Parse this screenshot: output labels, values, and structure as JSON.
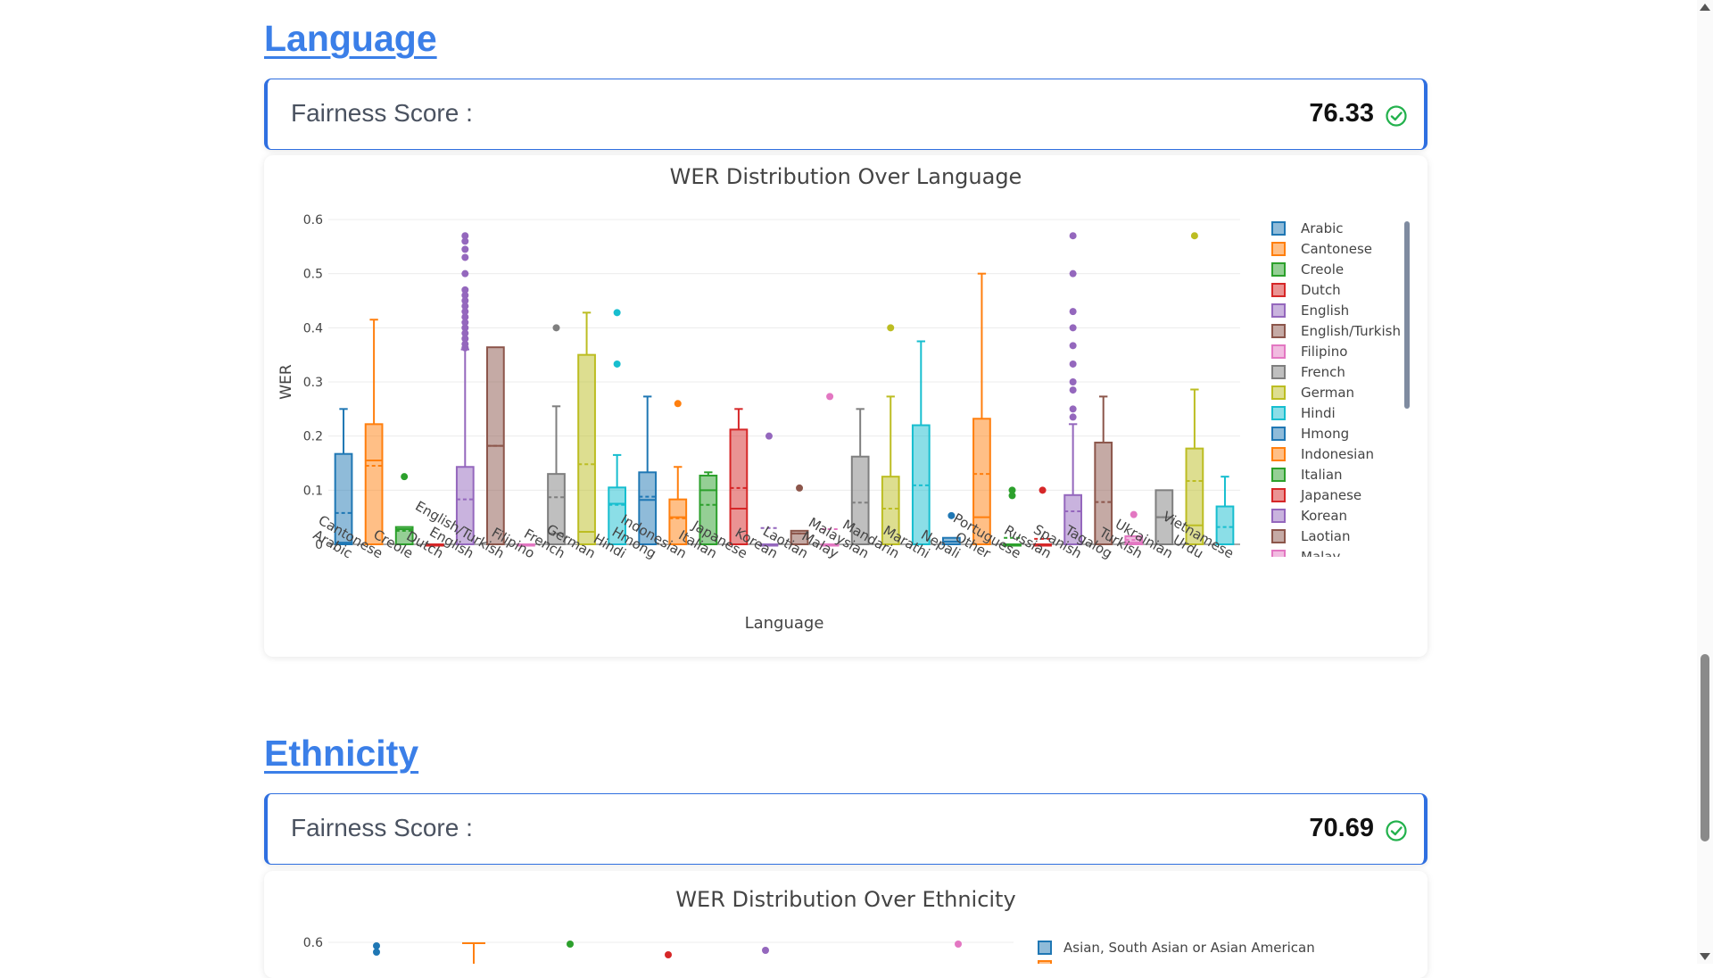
{
  "sections": [
    {
      "title": "Language",
      "score_label": "Fairness Score :",
      "score_value": "76.33",
      "chart_title": "WER Distribution Over Language"
    },
    {
      "title": "Ethnicity",
      "score_label": "Fairness Score :",
      "score_value": "70.69",
      "chart_title": "WER Distribution Over Ethnicity"
    }
  ],
  "colors": {
    "link": "#3b7fe8",
    "check": "#22b14c",
    "border": "#2f6fe0"
  },
  "chart_data": [
    {
      "type": "box",
      "title": "WER Distribution Over Language",
      "xlabel": "Language",
      "ylabel": "WER",
      "ylim": [
        0,
        0.6
      ],
      "yticks": [
        0,
        0.1,
        0.2,
        0.3,
        0.4,
        0.5,
        0.6
      ],
      "ytick_labels": [
        "0",
        "0.1",
        "0.2",
        "0.3",
        "0.4",
        "0.5",
        "0.6"
      ],
      "grid": true,
      "legend_position": "right",
      "categories": [
        "Arabic",
        "Cantonese",
        "Creole",
        "Dutch",
        "English",
        "English/Turkish",
        "Filipino",
        "French",
        "German",
        "Hindi",
        "Hmong",
        "Indonesian",
        "Italian",
        "Japanese",
        "Korean",
        "Laotian",
        "Malay",
        "Malaysian",
        "Mandarin",
        "Marathi",
        "Nepali",
        "Other",
        "Portuguese",
        "Russian",
        "Spanish",
        "Tagalog",
        "Turkish",
        "Ukrainian",
        "Urdu",
        "Vietnamese"
      ],
      "legend": [
        "Arabic",
        "Cantonese",
        "Creole",
        "Dutch",
        "English",
        "English/Turkish",
        "Filipino",
        "French",
        "German",
        "Hindi",
        "Hmong",
        "Indonesian",
        "Italian",
        "Japanese",
        "Korean",
        "Laotian",
        "Malay"
      ],
      "series": [
        {
          "name": "Arabic",
          "color": "#1f77b4",
          "min": 0,
          "q1": 0,
          "median": 0.003,
          "q3": 0.167,
          "max": 0.25,
          "mean": 0.058,
          "outliers": []
        },
        {
          "name": "Cantonese",
          "color": "#ff7f0e",
          "min": 0,
          "q1": 0,
          "median": 0.155,
          "q3": 0.222,
          "max": 0.415,
          "mean": 0.145,
          "outliers": []
        },
        {
          "name": "Creole",
          "color": "#2ca02c",
          "min": 0,
          "q1": 0,
          "median": 0.028,
          "q3": 0.032,
          "max": 0.032,
          "mean": 0.025,
          "outliers": [
            0.125
          ]
        },
        {
          "name": "Dutch",
          "color": "#d62728",
          "min": 0,
          "q1": 0,
          "median": 0,
          "q3": 0,
          "max": 0,
          "mean": 0,
          "outliers": []
        },
        {
          "name": "English",
          "color": "#9467bd",
          "min": 0,
          "q1": 0,
          "median": 0,
          "q3": 0.143,
          "max": 0.36,
          "mean": 0.083,
          "outliers": [
            0.363,
            0.37,
            0.38,
            0.39,
            0.4,
            0.41,
            0.42,
            0.43,
            0.44,
            0.45,
            0.46,
            0.47,
            0.5,
            0.53,
            0.545,
            0.56,
            0.57
          ]
        },
        {
          "name": "English/Turkish",
          "color": "#8c564b",
          "min": 0,
          "q1": 0,
          "median": 0.182,
          "q3": 0.364,
          "max": 0.364,
          "mean": 0.182,
          "outliers": []
        },
        {
          "name": "Filipino",
          "color": "#e377c2",
          "min": 0,
          "q1": 0,
          "median": 0,
          "q3": 0,
          "max": 0,
          "mean": 0,
          "outliers": []
        },
        {
          "name": "French",
          "color": "#7f7f7f",
          "min": 0,
          "q1": 0,
          "median": 0.02,
          "q3": 0.13,
          "max": 0.255,
          "mean": 0.087,
          "outliers": [
            0.4
          ]
        },
        {
          "name": "German",
          "color": "#bcbd22",
          "min": 0,
          "q1": 0,
          "median": 0.023,
          "q3": 0.35,
          "max": 0.428,
          "mean": 0.148,
          "outliers": []
        },
        {
          "name": "Hindi",
          "color": "#17becf",
          "min": 0,
          "q1": 0,
          "median": 0.075,
          "q3": 0.105,
          "max": 0.165,
          "mean": 0.073,
          "outliers": [
            0.333,
            0.428
          ]
        },
        {
          "name": "Hmong",
          "color": "#1f77b4",
          "min": 0,
          "q1": 0,
          "median": 0.082,
          "q3": 0.133,
          "max": 0.273,
          "mean": 0.088,
          "outliers": []
        },
        {
          "name": "Indonesian",
          "color": "#ff7f0e",
          "min": 0,
          "q1": 0,
          "median": 0.05,
          "q3": 0.083,
          "max": 0.143,
          "mean": 0.048,
          "outliers": [
            0.26
          ]
        },
        {
          "name": "Italian",
          "color": "#2ca02c",
          "min": 0,
          "q1": 0,
          "median": 0.1,
          "q3": 0.127,
          "max": 0.133,
          "mean": 0.073,
          "outliers": []
        },
        {
          "name": "Japanese",
          "color": "#d62728",
          "min": 0,
          "q1": 0,
          "median": 0.066,
          "q3": 0.212,
          "max": 0.25,
          "mean": 0.104,
          "outliers": []
        },
        {
          "name": "Korean",
          "color": "#9467bd",
          "min": 0,
          "q1": 0,
          "median": 0,
          "q3": 0,
          "max": 0,
          "mean": 0.03,
          "outliers": [
            0.2
          ]
        },
        {
          "name": "Laotian",
          "color": "#8c564b",
          "min": 0,
          "q1": 0,
          "median": 0.02,
          "q3": 0.025,
          "max": 0.025,
          "mean": 0.02,
          "outliers": [
            0.104
          ]
        },
        {
          "name": "Malay",
          "color": "#e377c2",
          "min": 0,
          "q1": 0,
          "median": 0,
          "q3": 0,
          "max": 0,
          "mean": 0.028,
          "outliers": [
            0.273
          ]
        },
        {
          "name": "Malaysian",
          "color": "#7f7f7f",
          "min": 0,
          "q1": 0,
          "median": 0,
          "q3": 0.162,
          "max": 0.25,
          "mean": 0.077,
          "outliers": []
        },
        {
          "name": "Mandarin",
          "color": "#bcbd22",
          "min": 0,
          "q1": 0,
          "median": 0,
          "q3": 0.125,
          "max": 0.273,
          "mean": 0.066,
          "outliers": [
            0.4
          ]
        },
        {
          "name": "Marathi",
          "color": "#17becf",
          "min": 0,
          "q1": 0,
          "median": 0,
          "q3": 0.22,
          "max": 0.375,
          "mean": 0.109,
          "outliers": []
        },
        {
          "name": "Nepali",
          "color": "#1f77b4",
          "min": 0,
          "q1": 0,
          "median": 0.005,
          "q3": 0.012,
          "max": 0.012,
          "mean": 0.005,
          "outliers": [
            0.053
          ]
        },
        {
          "name": "Other",
          "color": "#ff7f0e",
          "min": 0,
          "q1": 0,
          "median": 0.05,
          "q3": 0.232,
          "max": 0.5,
          "mean": 0.13,
          "outliers": []
        },
        {
          "name": "Portuguese",
          "color": "#2ca02c",
          "min": 0,
          "q1": 0,
          "median": 0,
          "q3": 0,
          "max": 0,
          "mean": 0.012,
          "outliers": [
            0.09,
            0.1
          ]
        },
        {
          "name": "Russian",
          "color": "#d62728",
          "min": 0,
          "q1": 0,
          "median": 0,
          "q3": 0,
          "max": 0,
          "mean": 0.01,
          "outliers": [
            0.1
          ]
        },
        {
          "name": "Spanish",
          "color": "#9467bd",
          "min": 0,
          "q1": 0,
          "median": 0,
          "q3": 0.091,
          "max": 0.222,
          "mean": 0.061,
          "outliers": [
            0.235,
            0.25,
            0.285,
            0.3,
            0.333,
            0.367,
            0.4,
            0.43,
            0.5,
            0.57
          ]
        },
        {
          "name": "Tagalog",
          "color": "#8c564b",
          "min": 0,
          "q1": 0,
          "median": 0,
          "q3": 0.188,
          "max": 0.273,
          "mean": 0.078,
          "outliers": []
        },
        {
          "name": "Turkish",
          "color": "#e377c2",
          "min": 0,
          "q1": 0,
          "median": 0.003,
          "q3": 0.015,
          "max": 0.015,
          "mean": 0.008,
          "outliers": [
            0.055
          ]
        },
        {
          "name": "Ukrainian",
          "color": "#7f7f7f",
          "min": 0,
          "q1": 0,
          "median": 0.05,
          "q3": 0.1,
          "max": 0.1,
          "mean": 0.05,
          "outliers": []
        },
        {
          "name": "Urdu",
          "color": "#bcbd22",
          "min": 0,
          "q1": 0,
          "median": 0.035,
          "q3": 0.177,
          "max": 0.286,
          "mean": 0.117,
          "outliers": [
            0.57
          ]
        },
        {
          "name": "Vietnamese",
          "color": "#17becf",
          "min": 0,
          "q1": 0,
          "median": 0,
          "q3": 0.07,
          "max": 0.125,
          "mean": 0.032,
          "outliers": []
        }
      ]
    },
    {
      "type": "box",
      "title": "WER Distribution Over Ethnicity",
      "ylim": [
        0,
        0.6
      ],
      "yticks": [
        0.6
      ],
      "ytick_labels": [
        "0.6"
      ],
      "legend": [
        "Asian, South Asian or Asian American"
      ],
      "legend_colors": [
        "#1f77b4"
      ]
    }
  ]
}
